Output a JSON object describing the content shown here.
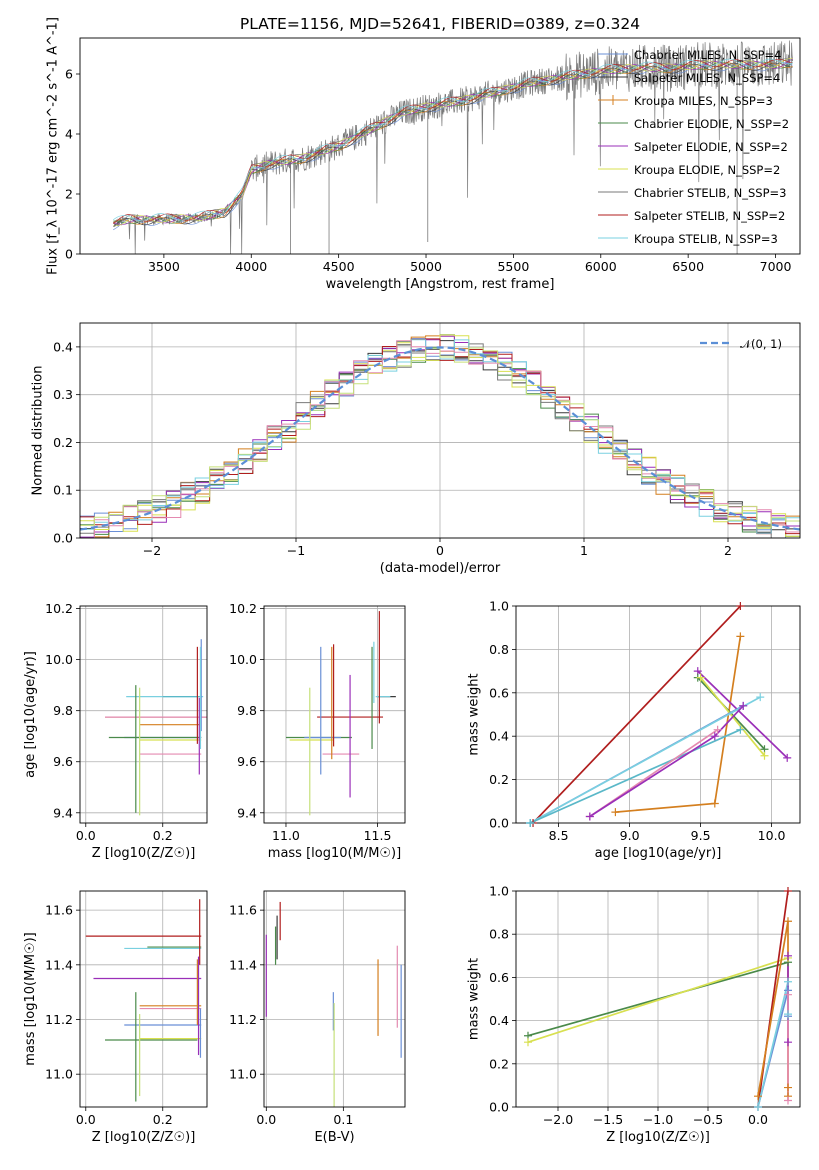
{
  "title": "PLATE=1156, MJD=52641, FIBERID=0389, z=0.324",
  "colors": {
    "Chabrier MILES": "#6a8fd6",
    "Salpeter MILES": "#3a3a3a",
    "Kroupa MILES": "#d47f1f",
    "Chabrier ELODIE": "#4a8a4a",
    "Salpeter ELODIE": "#9a2fb8",
    "Kroupa ELODIE": "#d8e050",
    "Chabrier STELIB": "#7a7a7a",
    "Salpeter STELIB": "#b01e1e",
    "Kroupa STELIB": "#7ad0e0",
    "extra_pink": "#e48ab0",
    "extra_teal": "#5ab8c8",
    "extra_lime": "#c6e07a",
    "normal": "#5b8fd6",
    "grid": "#b0b0b0"
  },
  "chart_data": [
    {
      "id": "spectrum",
      "type": "line",
      "xlabel": "wavelength [Angstrom, rest frame]",
      "ylabel": "Flux [f_λ 10^-17 erg cm^-2 s^-1 A^-1]",
      "xlim": [
        3020,
        7140
      ],
      "ylim": [
        0,
        7.2
      ],
      "xticks": [
        3500,
        4000,
        4500,
        5000,
        5500,
        6000,
        6500,
        7000
      ],
      "yticks": [
        0,
        2,
        4,
        6
      ],
      "grid": false,
      "legend_position": "top-right",
      "legend": [
        {
          "label": "Chabrier MILES, N_SSP=4",
          "color": "#6a8fd6"
        },
        {
          "label": "Salpeter MILES, N_SSP=4",
          "color": "#3a3a3a"
        },
        {
          "label": "Kroupa MILES, N_SSP=3",
          "color": "#d47f1f"
        },
        {
          "label": "Chabrier ELODIE, N_SSP=2",
          "color": "#4a8a4a"
        },
        {
          "label": "Salpeter ELODIE, N_SSP=2",
          "color": "#9a2fb8"
        },
        {
          "label": "Kroupa ELODIE, N_SSP=2",
          "color": "#d8e050"
        },
        {
          "label": "Chabrier STELIB, N_SSP=3",
          "color": "#7a7a7a"
        },
        {
          "label": "Salpeter STELIB, N_SSP=2",
          "color": "#b01e1e"
        },
        {
          "label": "Kroupa STELIB, N_SSP=3",
          "color": "#7ad0e0"
        }
      ],
      "continuum": {
        "x": [
          3210,
          3300,
          3500,
          3700,
          3850,
          3950,
          4000,
          4100,
          4300,
          4500,
          4700,
          4860,
          5000,
          5200,
          5400,
          5600,
          5800,
          6000,
          6200,
          6400,
          6600,
          6800,
          7000,
          7100
        ],
        "y": [
          1.0,
          1.15,
          1.15,
          1.2,
          1.4,
          2.0,
          2.8,
          3.0,
          3.2,
          3.6,
          4.2,
          4.7,
          4.9,
          5.1,
          5.4,
          5.7,
          5.9,
          6.1,
          6.2,
          6.2,
          6.3,
          6.3,
          6.3,
          6.4
        ]
      }
    },
    {
      "id": "residuals",
      "type": "line",
      "xlabel": "(data-model)/error",
      "ylabel": "Normed distribution",
      "xlim": [
        -2.5,
        2.5
      ],
      "ylim": [
        0,
        0.45
      ],
      "xticks": [
        -2,
        -1,
        0,
        1,
        2
      ],
      "yticks": [
        0.0,
        0.1,
        0.2,
        0.3,
        0.4
      ],
      "grid": true,
      "legend_position": "top-right",
      "legend": [
        {
          "label": "𝒩(0, 1)",
          "color": "#5b8fd6",
          "style": "dashed"
        }
      ]
    },
    {
      "id": "z-age",
      "type": "scatter",
      "xlabel": "Z [log10(Z/Z☉)]",
      "ylabel": "age [log10(age/yr)]",
      "xlim": [
        -0.015,
        0.315
      ],
      "ylim": [
        9.36,
        10.21
      ],
      "xticks": [
        0.0,
        0.2
      ],
      "yticks": [
        9.4,
        9.6,
        9.8,
        10.0,
        10.2
      ],
      "grid": true,
      "errorbars": [
        {
          "x": 0.205,
          "y": 9.855,
          "xerr": 0.1,
          "yerr": 0.0,
          "color": "#7ad0e0"
        },
        {
          "x": 0.25,
          "y": 9.855,
          "xerr": 0.05,
          "yerr": 0.0,
          "color": "#5ab8c8"
        },
        {
          "x": 0.25,
          "y": 9.775,
          "xerr": 0.2,
          "yerr": 0.0,
          "color": "#b01e1e"
        },
        {
          "x": 0.25,
          "y": 9.775,
          "xerr": 0.2,
          "yerr": 0.0,
          "color": "#e48ab0"
        },
        {
          "x": 0.22,
          "y": 9.745,
          "xerr": 0.08,
          "yerr": 0.0,
          "color": "#d47f1f"
        },
        {
          "x": 0.2,
          "y": 9.695,
          "xerr": 0.1,
          "yerr": 0.0,
          "color": "#6a8fd6"
        },
        {
          "x": 0.18,
          "y": 9.695,
          "xerr": 0.12,
          "yerr": 0.0,
          "color": "#4a8a4a"
        },
        {
          "x": 0.22,
          "y": 9.685,
          "xerr": 0.08,
          "yerr": 0.0,
          "color": "#d8e050"
        },
        {
          "x": 0.22,
          "y": 9.63,
          "xerr": 0.08,
          "yerr": 0.0,
          "color": "#e48ab0"
        },
        {
          "x": 0.13,
          "y": 9.65,
          "xerr": 0.0,
          "yerr": 0.25,
          "color": "#4a8a4a"
        },
        {
          "x": 0.14,
          "y": 9.64,
          "xerr": 0.0,
          "yerr": 0.25,
          "color": "#c6e07a"
        },
        {
          "x": 0.29,
          "y": 9.86,
          "xerr": 0.0,
          "yerr": 0.19,
          "color": "#b01e1e"
        },
        {
          "x": 0.295,
          "y": 9.7,
          "xerr": 0.0,
          "yerr": 0.15,
          "color": "#9a2fb8"
        },
        {
          "x": 0.3,
          "y": 9.9,
          "xerr": 0.0,
          "yerr": 0.18,
          "color": "#6a8fd6"
        },
        {
          "x": 0.298,
          "y": 9.85,
          "xerr": 0.0,
          "yerr": 0.2,
          "color": "#7ad0e0"
        }
      ]
    },
    {
      "id": "mass-age",
      "type": "scatter",
      "xlabel": "mass [log10(M/M☉)]",
      "ylabel": "",
      "xlim": [
        10.88,
        11.65
      ],
      "ylim": [
        9.36,
        10.21
      ],
      "xticks": [
        11.0,
        11.5
      ],
      "yticks": [
        9.4,
        9.6,
        9.8,
        10.0,
        10.2
      ],
      "grid": true,
      "errorbars": [
        {
          "x": 11.18,
          "y": 9.695,
          "xerr": 0.18,
          "yerr": 0.0,
          "color": "#4a8a4a"
        },
        {
          "x": 11.2,
          "y": 9.695,
          "xerr": 0.1,
          "yerr": 0.0,
          "color": "#6a8fd6"
        },
        {
          "x": 11.14,
          "y": 9.685,
          "xerr": 0.12,
          "yerr": 0.0,
          "color": "#d8e050"
        },
        {
          "x": 11.35,
          "y": 9.775,
          "xerr": 0.18,
          "yerr": 0.0,
          "color": "#b01e1e"
        },
        {
          "x": 11.3,
          "y": 9.63,
          "xerr": 0.1,
          "yerr": 0.0,
          "color": "#e48ab0"
        },
        {
          "x": 11.55,
          "y": 9.855,
          "xerr": 0.05,
          "yerr": 0.0,
          "color": "#3a3a3a"
        },
        {
          "x": 11.53,
          "y": 9.855,
          "xerr": 0.04,
          "yerr": 0.0,
          "color": "#7ad0e0"
        },
        {
          "x": 11.13,
          "y": 9.64,
          "xerr": 0.0,
          "yerr": 0.25,
          "color": "#c6e07a"
        },
        {
          "x": 11.19,
          "y": 9.8,
          "xerr": 0.0,
          "yerr": 0.25,
          "color": "#6a8fd6"
        },
        {
          "x": 11.25,
          "y": 9.83,
          "xerr": 0.0,
          "yerr": 0.22,
          "color": "#d47f1f"
        },
        {
          "x": 11.26,
          "y": 9.86,
          "xerr": 0.0,
          "yerr": 0.2,
          "color": "#b01e1e"
        },
        {
          "x": 11.35,
          "y": 9.7,
          "xerr": 0.0,
          "yerr": 0.24,
          "color": "#9a2fb8"
        },
        {
          "x": 11.47,
          "y": 9.85,
          "xerr": 0.0,
          "yerr": 0.2,
          "color": "#4a8a4a"
        },
        {
          "x": 11.51,
          "y": 9.97,
          "xerr": 0.0,
          "yerr": 0.22,
          "color": "#b01e1e"
        },
        {
          "x": 11.48,
          "y": 9.95,
          "xerr": 0.0,
          "yerr": 0.12,
          "color": "#7ad0e0"
        }
      ]
    },
    {
      "id": "age-massweight",
      "type": "line",
      "xlabel": "age [log10(age/yr)]",
      "ylabel": "mass weight",
      "xlim": [
        8.2,
        10.2
      ],
      "ylim": [
        0.0,
        1.0
      ],
      "xticks": [
        8.5,
        9.0,
        9.5,
        10.0
      ],
      "yticks": [
        0.0,
        0.2,
        0.4,
        0.6,
        0.8,
        1.0
      ],
      "grid": true,
      "series": [
        {
          "color": "#b01e1e",
          "x": [
            8.32,
            9.78
          ],
          "y": [
            0.0,
            1.0
          ]
        },
        {
          "color": "#d47f1f",
          "x": [
            8.9,
            9.6,
            9.78
          ],
          "y": [
            0.05,
            0.09,
            0.86
          ]
        },
        {
          "color": "#9a2fb8",
          "x": [
            9.48,
            10.11
          ],
          "y": [
            0.7,
            0.3
          ]
        },
        {
          "color": "#4a8a4a",
          "x": [
            9.48,
            9.95
          ],
          "y": [
            0.67,
            0.34
          ]
        },
        {
          "color": "#d8e050",
          "x": [
            9.5,
            9.95
          ],
          "y": [
            0.67,
            0.31
          ]
        },
        {
          "color": "#6a8fd6",
          "x": [
            8.3,
            9.8
          ],
          "y": [
            0.0,
            0.54
          ]
        },
        {
          "color": "#7ad0e0",
          "x": [
            8.3,
            9.92
          ],
          "y": [
            0.0,
            0.58
          ]
        },
        {
          "color": "#5ab8c8",
          "x": [
            8.3,
            9.78
          ],
          "y": [
            0.0,
            0.43
          ]
        },
        {
          "color": "#e48ab0",
          "x": [
            8.72,
            9.62
          ],
          "y": [
            0.03,
            0.43
          ]
        },
        {
          "color": "#9a2fb8",
          "x": [
            8.72,
            9.6,
            9.8
          ],
          "y": [
            0.03,
            0.4,
            0.54
          ]
        }
      ]
    },
    {
      "id": "z-mass",
      "type": "scatter",
      "xlabel": "Z [log10(Z/Z☉)]",
      "ylabel": "mass [log10(M/M☉)]",
      "xlim": [
        -0.015,
        0.315
      ],
      "ylim": [
        10.88,
        11.67
      ],
      "xticks": [
        0.0,
        0.2
      ],
      "yticks": [
        11.0,
        11.2,
        11.4,
        11.6
      ],
      "grid": true,
      "errorbars": [
        {
          "x": 0.15,
          "y": 11.505,
          "xerr": 0.15,
          "yerr": 0.0,
          "color": "#b01e1e"
        },
        {
          "x": 0.23,
          "y": 11.465,
          "xerr": 0.07,
          "yerr": 0.0,
          "color": "#4a8a4a"
        },
        {
          "x": 0.2,
          "y": 11.46,
          "xerr": 0.1,
          "yerr": 0.0,
          "color": "#7ad0e0"
        },
        {
          "x": 0.16,
          "y": 11.35,
          "xerr": 0.14,
          "yerr": 0.0,
          "color": "#9a2fb8"
        },
        {
          "x": 0.22,
          "y": 11.25,
          "xerr": 0.08,
          "yerr": 0.0,
          "color": "#d47f1f"
        },
        {
          "x": 0.22,
          "y": 11.24,
          "xerr": 0.08,
          "yerr": 0.0,
          "color": "#e48ab0"
        },
        {
          "x": 0.2,
          "y": 11.18,
          "xerr": 0.1,
          "yerr": 0.0,
          "color": "#6a8fd6"
        },
        {
          "x": 0.17,
          "y": 11.125,
          "xerr": 0.12,
          "yerr": 0.0,
          "color": "#4a8a4a"
        },
        {
          "x": 0.22,
          "y": 11.13,
          "xerr": 0.08,
          "yerr": 0.0,
          "color": "#d8e050"
        },
        {
          "x": 0.13,
          "y": 11.1,
          "xerr": 0.0,
          "yerr": 0.2,
          "color": "#4a8a4a"
        },
        {
          "x": 0.14,
          "y": 11.07,
          "xerr": 0.0,
          "yerr": 0.15,
          "color": "#c6e07a"
        },
        {
          "x": 0.296,
          "y": 11.52,
          "xerr": 0.0,
          "yerr": 0.12,
          "color": "#b01e1e"
        },
        {
          "x": 0.29,
          "y": 11.3,
          "xerr": 0.0,
          "yerr": 0.12,
          "color": "#d47f1f"
        },
        {
          "x": 0.293,
          "y": 11.25,
          "xerr": 0.0,
          "yerr": 0.18,
          "color": "#9a2fb8"
        },
        {
          "x": 0.298,
          "y": 11.15,
          "xerr": 0.0,
          "yerr": 0.09,
          "color": "#6a8fd6"
        }
      ]
    },
    {
      "id": "ebv-mass",
      "type": "scatter",
      "xlabel": "E(B-V)",
      "ylabel": "",
      "xlim": [
        -0.003,
        0.18
      ],
      "ylim": [
        10.88,
        11.67
      ],
      "xticks": [
        0.0,
        0.1
      ],
      "yticks": [
        11.0,
        11.2,
        11.4,
        11.6
      ],
      "grid": true,
      "errorbars": [
        {
          "x": 0.0,
          "y": 11.36,
          "xerr": 0.0,
          "yerr": 0.15,
          "color": "#9a2fb8"
        },
        {
          "x": 0.012,
          "y": 11.47,
          "xerr": 0.0,
          "yerr": 0.07,
          "color": "#4a8a4a"
        },
        {
          "x": 0.014,
          "y": 11.5,
          "xerr": 0.0,
          "yerr": 0.08,
          "color": "#3a3a3a"
        },
        {
          "x": 0.018,
          "y": 11.56,
          "xerr": 0.0,
          "yerr": 0.07,
          "color": "#b01e1e"
        },
        {
          "x": 0.087,
          "y": 11.23,
          "xerr": 0.0,
          "yerr": 0.07,
          "color": "#6a8fd6"
        },
        {
          "x": 0.088,
          "y": 11.06,
          "xerr": 0.0,
          "yerr": 0.2,
          "color": "#c6e07a"
        },
        {
          "x": 0.145,
          "y": 11.28,
          "xerr": 0.0,
          "yerr": 0.14,
          "color": "#d47f1f"
        },
        {
          "x": 0.17,
          "y": 11.32,
          "xerr": 0.0,
          "yerr": 0.15,
          "color": "#e48ab0"
        },
        {
          "x": 0.175,
          "y": 11.23,
          "xerr": 0.0,
          "yerr": 0.17,
          "color": "#6a8fd6"
        }
      ]
    },
    {
      "id": "z-massweight",
      "type": "line",
      "xlabel": "Z [log10(Z/Z☉)]",
      "ylabel": "mass weight",
      "xlim": [
        -2.42,
        0.42
      ],
      "ylim": [
        0.0,
        1.0
      ],
      "xticks": [
        -2.0,
        -1.5,
        -1.0,
        -0.5,
        0.0
      ],
      "yticks": [
        0.0,
        0.2,
        0.4,
        0.6,
        0.8,
        1.0
      ],
      "grid": true,
      "series": [
        {
          "color": "#4a8a4a",
          "x": [
            -2.3,
            0.3
          ],
          "y": [
            0.33,
            0.67
          ]
        },
        {
          "color": "#d8e050",
          "x": [
            -2.3,
            0.3
          ],
          "y": [
            0.3,
            0.69
          ]
        },
        {
          "color": "#b01e1e",
          "x": [
            0.0,
            0.3
          ],
          "y": [
            0.0,
            1.0
          ]
        },
        {
          "color": "#d47f1f",
          "x": [
            0.0,
            0.3,
            0.3,
            0.3
          ],
          "y": [
            0.05,
            0.86,
            0.09,
            0.05
          ]
        },
        {
          "color": "#6a8fd6",
          "x": [
            0.0,
            0.3,
            0.3
          ],
          "y": [
            0.0,
            0.54,
            0.42
          ]
        },
        {
          "color": "#7ad0e0",
          "x": [
            0.0,
            0.3,
            0.3
          ],
          "y": [
            0.0,
            0.58,
            0.43
          ]
        },
        {
          "color": "#9a2fb8",
          "x": [
            0.3,
            0.3
          ],
          "y": [
            0.7,
            0.3
          ]
        },
        {
          "color": "#e48ab0",
          "x": [
            0.3,
            0.3
          ],
          "y": [
            0.52,
            0.03
          ]
        }
      ]
    }
  ]
}
